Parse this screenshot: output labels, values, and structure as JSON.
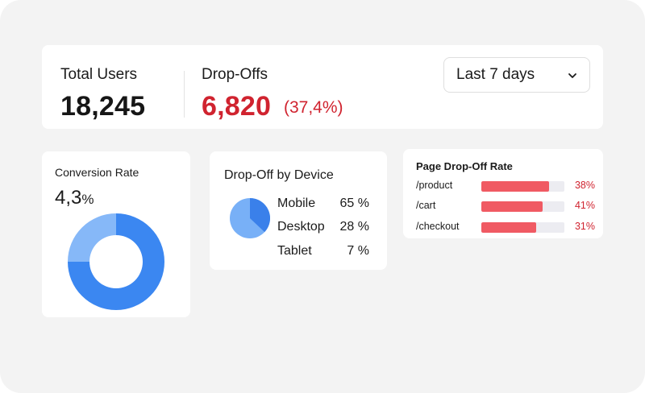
{
  "summary": {
    "total_users_label": "Total Users",
    "total_users_value": "18,245",
    "dropoffs_label": "Drop-Offs",
    "dropoffs_value": "6,820",
    "dropoffs_percent": "(37,4%)",
    "date_range": "Last 7 days",
    "date_range_icon": "chevron-down-icon"
  },
  "conversion": {
    "title": "Conversion Rate",
    "value": "4,3",
    "unit": "%",
    "rate": 4.3,
    "donut_split": [
      0.25,
      0.75
    ]
  },
  "device": {
    "title": "Drop-Off by Device",
    "rows": [
      {
        "name": "Mobile",
        "value": "65 %",
        "share": 65
      },
      {
        "name": "Desktop",
        "value": "28 %",
        "share": 28
      },
      {
        "name": "Tablet",
        "value": "7 %",
        "share": 7
      }
    ]
  },
  "pages": {
    "title": "Page Drop-Off Rate",
    "rows": [
      {
        "path": "/product",
        "value": "38%",
        "fill": 0.82
      },
      {
        "path": "/cart",
        "value": "41%",
        "fill": 0.74
      },
      {
        "path": "/checkout",
        "value": "31%",
        "fill": 0.66
      }
    ]
  },
  "colors": {
    "accent_red": "#d0232f",
    "bar_red": "#f05a63",
    "donut_dark": "#3b87f1",
    "donut_light": "#86b8f8",
    "pie_dark": "#3a80ea",
    "pie_light": "#78b0f7"
  }
}
